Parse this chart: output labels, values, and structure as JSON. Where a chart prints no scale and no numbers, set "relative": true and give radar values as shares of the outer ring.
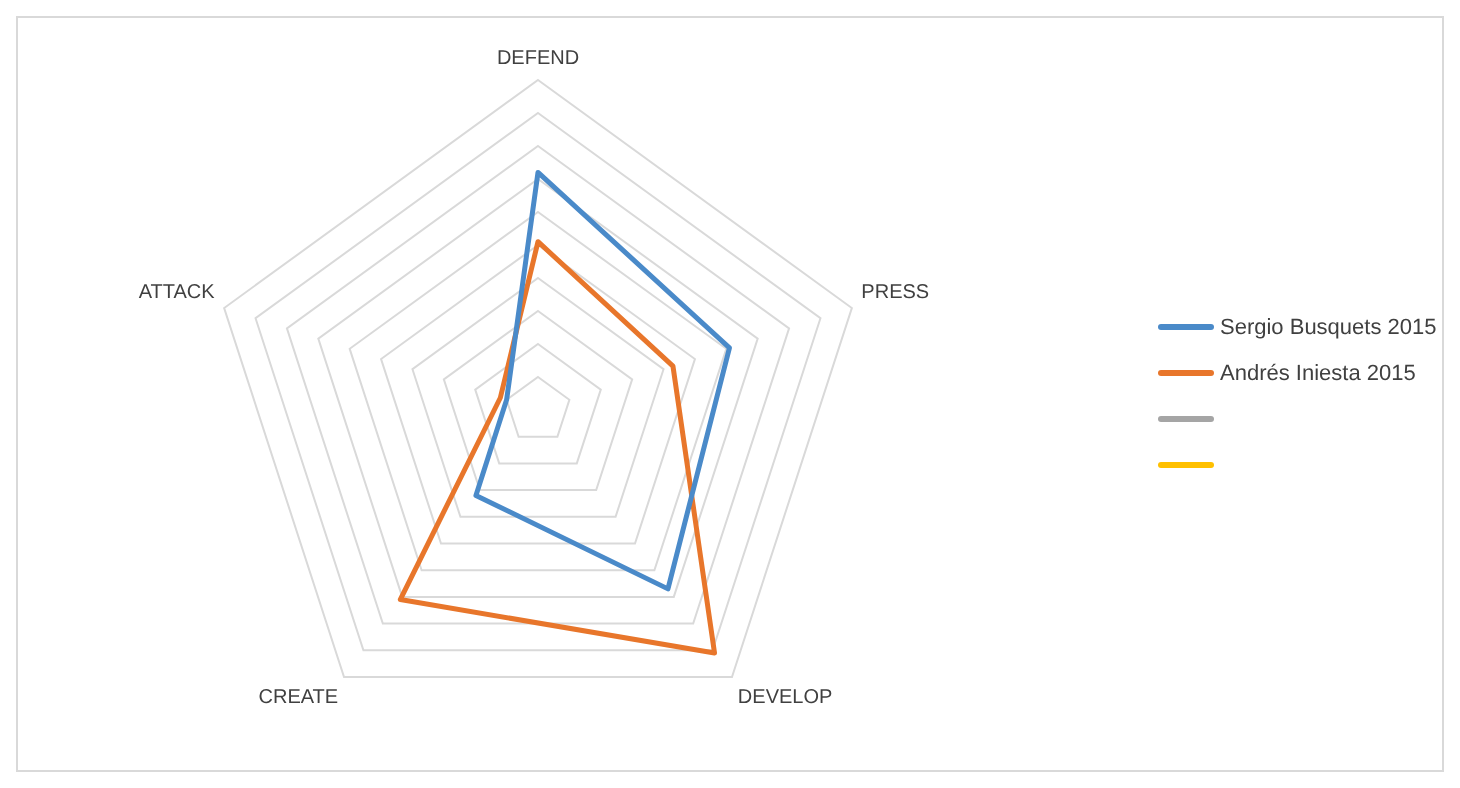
{
  "chart_data": {
    "type": "radar",
    "relative": true,
    "categories": [
      "DEFEND",
      "PRESS",
      "DEVELOP",
      "CREATE",
      "ATTACK"
    ],
    "legend": "right",
    "marker": "none",
    "series": [
      {
        "name": "Sergio Busquets 2015",
        "color": "#4a8ac9",
        "values": [
          0.72,
          0.61,
          0.67,
          0.32,
          0.1
        ]
      },
      {
        "name": "Andrés Iniesta 2015",
        "color": "#e8762b",
        "values": [
          0.51,
          0.43,
          0.91,
          0.71,
          0.12
        ]
      }
    ]
  }
}
